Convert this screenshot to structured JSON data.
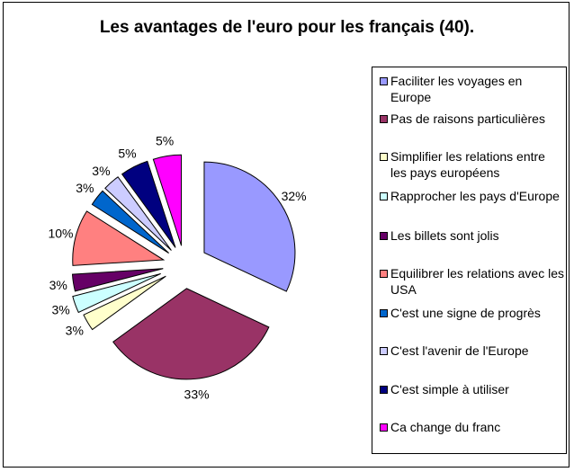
{
  "chart_data": {
    "type": "pie",
    "title": "Les avantages de l'euro pour les français (40).",
    "legend_position": "right",
    "slices": [
      {
        "label": "Faciliter les voyages en Europe",
        "value": 32,
        "display": "32%",
        "color": "#9999ff"
      },
      {
        "label": "Pas de raisons particulières",
        "value": 33,
        "display": "33%",
        "color": "#993366"
      },
      {
        "label": "Simplifier les relations entre les pays européens",
        "value": 3,
        "display": "3%",
        "color": "#ffffcc"
      },
      {
        "label": "Rapprocher les pays d'Europe",
        "value": 3,
        "display": "3%",
        "color": "#ccffff"
      },
      {
        "label": "Les billets sont jolis",
        "value": 3,
        "display": "3%",
        "color": "#660066"
      },
      {
        "label": "Equilibrer les relations avec les USA",
        "value": 10,
        "display": "10%",
        "color": "#ff8080"
      },
      {
        "label": "C'est une signe de progrès",
        "value": 3,
        "display": "3%",
        "color": "#0066cc"
      },
      {
        "label": "C'est l'avenir de l'Europe",
        "value": 3,
        "display": "3%",
        "color": "#ccccff"
      },
      {
        "label": "C'est simple à utiliser",
        "value": 5,
        "display": "5%",
        "color": "#000080"
      },
      {
        "label": "Ca change du franc",
        "value": 5,
        "display": "5%",
        "color": "#ff00ff"
      }
    ]
  }
}
